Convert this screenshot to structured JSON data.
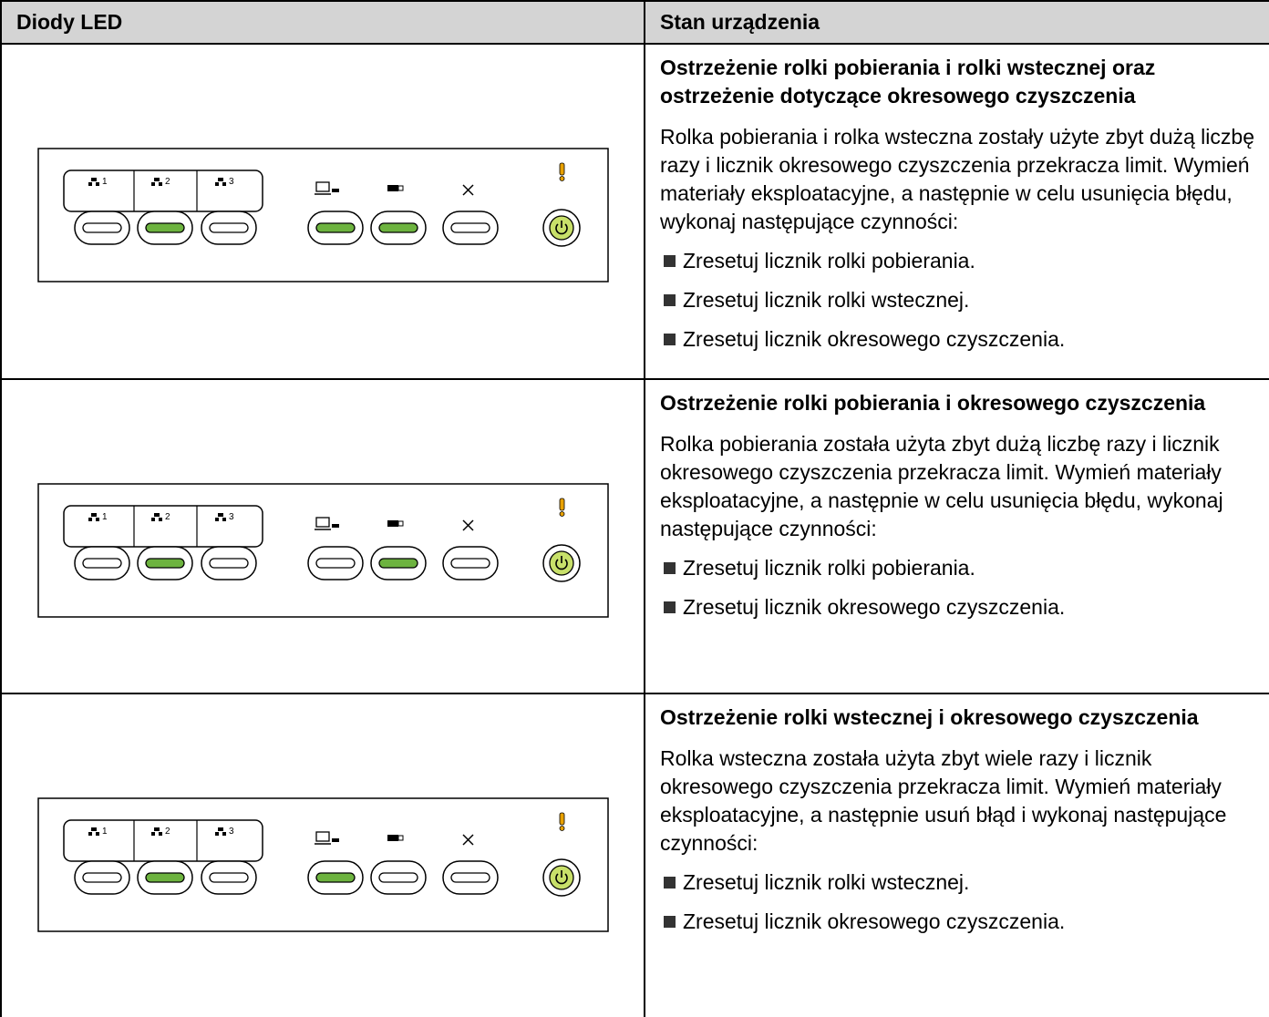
{
  "table": {
    "header": [
      "Diody LED",
      "Stan urządzenia"
    ],
    "rows": [
      {
        "panel_labels": [
          "1",
          "2",
          "3"
        ],
        "title": "Ostrzeżenie rolki pobierania i rolki wstecznej oraz ostrzeżenie dotyczące okresowego czyszczenia",
        "text": "Rolka pobierania i rolka wsteczna zostały użyte zbyt dużą liczbę razy i licznik okresowego czyszczenia przekracza limit. Wymień materiały eksploatacyjne, a następnie w celu usunięcia błędu, wykonaj następujące czynności:",
        "bullets": [
          "Zresetuj licznik rolki pobierania.",
          "Zresetuj licznik rolki wstecznej.",
          "Zresetuj licznik okresowego czyszczenia."
        ]
      },
      {
        "panel_labels": [
          "1",
          "2",
          "3"
        ],
        "title": "Ostrzeżenie rolki pobierania i okresowego czyszczenia",
        "text": "Rolka pobierania została użyta zbyt dużą liczbę razy i licznik okresowego czyszczenia przekracza limit. Wymień materiały eksploatacyjne, a następnie w celu usunięcia błędu, wykonaj następujące czynności:",
        "bullets": [
          "Zresetuj licznik rolki pobierania.",
          "Zresetuj licznik okresowego czyszczenia."
        ]
      },
      {
        "panel_labels": [
          "1",
          "2",
          "3"
        ],
        "title": "Ostrzeżenie rolki wstecznej i okresowego czyszczenia",
        "text": "Rolka wsteczna została użyta zbyt wiele razy i licznik okresowego czyszczenia przekracza limit. Wymień materiały eksploatacyjne, a następnie usuń błąd i wykonaj następujące czynności:",
        "bullets": [
          "Zresetuj licznik rolki wstecznej.",
          "Zresetuj licznik okresowego czyszczenia."
        ]
      }
    ]
  }
}
